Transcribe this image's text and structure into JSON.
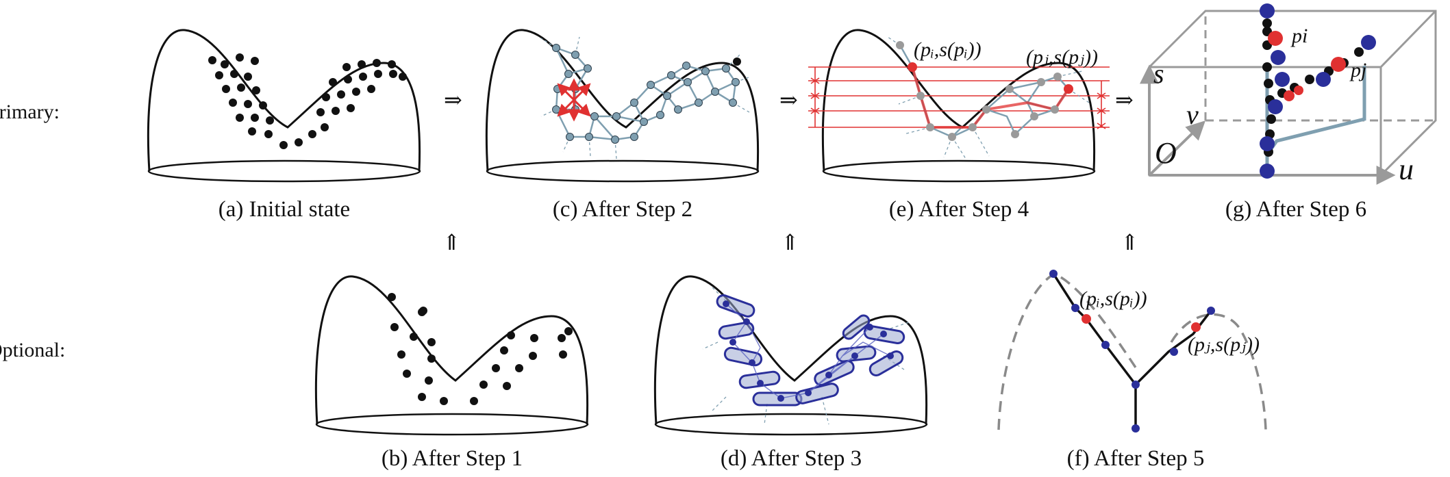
{
  "rows": {
    "primary": "Primary:",
    "optional": "Optional:"
  },
  "captions": {
    "a": "(a) Initial state",
    "b": "(b) After Step 1",
    "c": "(c) After Step 2",
    "d": "(d) After Step 3",
    "e": "(e) After Step 4",
    "f": "(f) After Step 5",
    "g": "(g) After Step 6"
  },
  "arrows": {
    "right": "⇒",
    "up": "⇑"
  },
  "math": {
    "pi_label": "(pᵢ,s(pᵢ))",
    "pj_label": "(pⱼ,s(pⱼ))",
    "axis_s": "s",
    "axis_v": "v",
    "axis_u": "u",
    "axis_O": "O",
    "point_pi": "pi",
    "point_pj": "pj"
  },
  "colors": {
    "ink": "#111111",
    "red": "#e03131",
    "steel": "#7f9fb0",
    "navy": "#2a2f9a",
    "box": "#9a9a9a"
  }
}
